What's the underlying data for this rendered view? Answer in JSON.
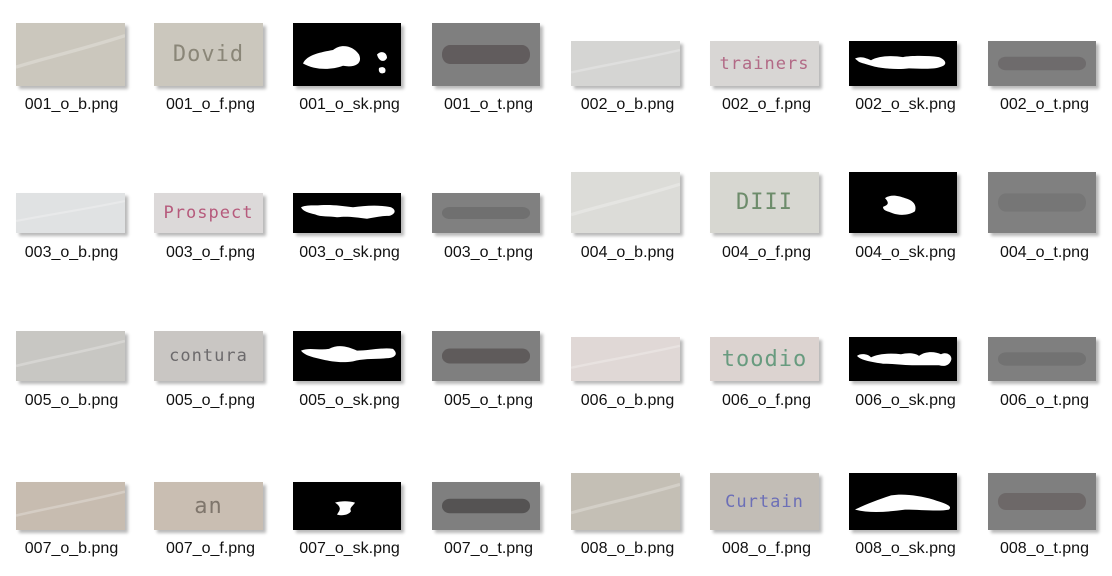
{
  "view": {
    "rows": [
      {
        "items": [
          {
            "label": "001_o_b.png",
            "kind": "b",
            "bg": "#cbc7bd"
          },
          {
            "label": "001_o_f.png",
            "kind": "f",
            "bg": "#cbc7bd",
            "word": "Dovid",
            "ink": "#8a8678"
          },
          {
            "label": "001_o_sk.png",
            "kind": "sk"
          },
          {
            "label": "001_o_t.png",
            "kind": "t",
            "bg": "#7f7f7f",
            "ink": "#5c5657"
          },
          {
            "label": "002_o_b.png",
            "kind": "b",
            "bg": "#d5d5d3"
          },
          {
            "label": "002_o_f.png",
            "kind": "f",
            "bg": "#d8d6d4",
            "word": "trainers",
            "ink": "#b26a86"
          },
          {
            "label": "002_o_sk.png",
            "kind": "sk"
          },
          {
            "label": "002_o_t.png",
            "kind": "t",
            "bg": "#7f7f7f",
            "ink": "#6b6768"
          }
        ]
      },
      {
        "items": [
          {
            "label": "003_o_b.png",
            "kind": "b",
            "bg": "#e0e2e3"
          },
          {
            "label": "003_o_f.png",
            "kind": "f",
            "bg": "#dcd9d9",
            "word": "Prospect",
            "ink": "#b65a7c"
          },
          {
            "label": "003_o_sk.png",
            "kind": "sk"
          },
          {
            "label": "003_o_t.png",
            "kind": "t",
            "bg": "#808080",
            "ink": "#6d6d6d"
          },
          {
            "label": "004_o_b.png",
            "kind": "b",
            "bg": "#dcdcd8"
          },
          {
            "label": "004_o_f.png",
            "kind": "f",
            "bg": "#d7d7d1",
            "word": "DIII",
            "ink": "#6d8c6b"
          },
          {
            "label": "004_o_sk.png",
            "kind": "sk"
          },
          {
            "label": "004_o_t.png",
            "kind": "t",
            "bg": "#808080",
            "ink": "#747474"
          }
        ]
      },
      {
        "items": [
          {
            "label": "005_o_b.png",
            "kind": "b",
            "bg": "#c8c7c3"
          },
          {
            "label": "005_o_f.png",
            "kind": "f",
            "bg": "#c9c6c3",
            "word": "contura",
            "ink": "#6c6a6c"
          },
          {
            "label": "005_o_sk.png",
            "kind": "sk"
          },
          {
            "label": "005_o_t.png",
            "kind": "t",
            "bg": "#7f7f7f",
            "ink": "#595555"
          },
          {
            "label": "006_o_b.png",
            "kind": "b",
            "bg": "#e0d8d6"
          },
          {
            "label": "006_o_f.png",
            "kind": "f",
            "bg": "#dcd3d0",
            "word": "toodio",
            "ink": "#689b7f"
          },
          {
            "label": "006_o_sk.png",
            "kind": "sk"
          },
          {
            "label": "006_o_t.png",
            "kind": "t",
            "bg": "#7f7f7f",
            "ink": "#707070"
          }
        ]
      },
      {
        "items": [
          {
            "label": "007_o_b.png",
            "kind": "b",
            "bg": "#c7bcb0"
          },
          {
            "label": "007_o_f.png",
            "kind": "f",
            "bg": "#c9beb2",
            "word": "an",
            "ink": "#7f766c"
          },
          {
            "label": "007_o_sk.png",
            "kind": "sk"
          },
          {
            "label": "007_o_t.png",
            "kind": "t",
            "bg": "#7f7f7f",
            "ink": "#4e4b4b"
          },
          {
            "label": "008_o_b.png",
            "kind": "b",
            "bg": "#c4bfb5"
          },
          {
            "label": "008_o_f.png",
            "kind": "f",
            "bg": "#c2bdb6",
            "word": "Curtain",
            "ink": "#6c6fb7"
          },
          {
            "label": "008_o_sk.png",
            "kind": "sk"
          },
          {
            "label": "008_o_t.png",
            "kind": "t",
            "bg": "#7f7f7f",
            "ink": "#6a6464"
          }
        ]
      }
    ]
  }
}
